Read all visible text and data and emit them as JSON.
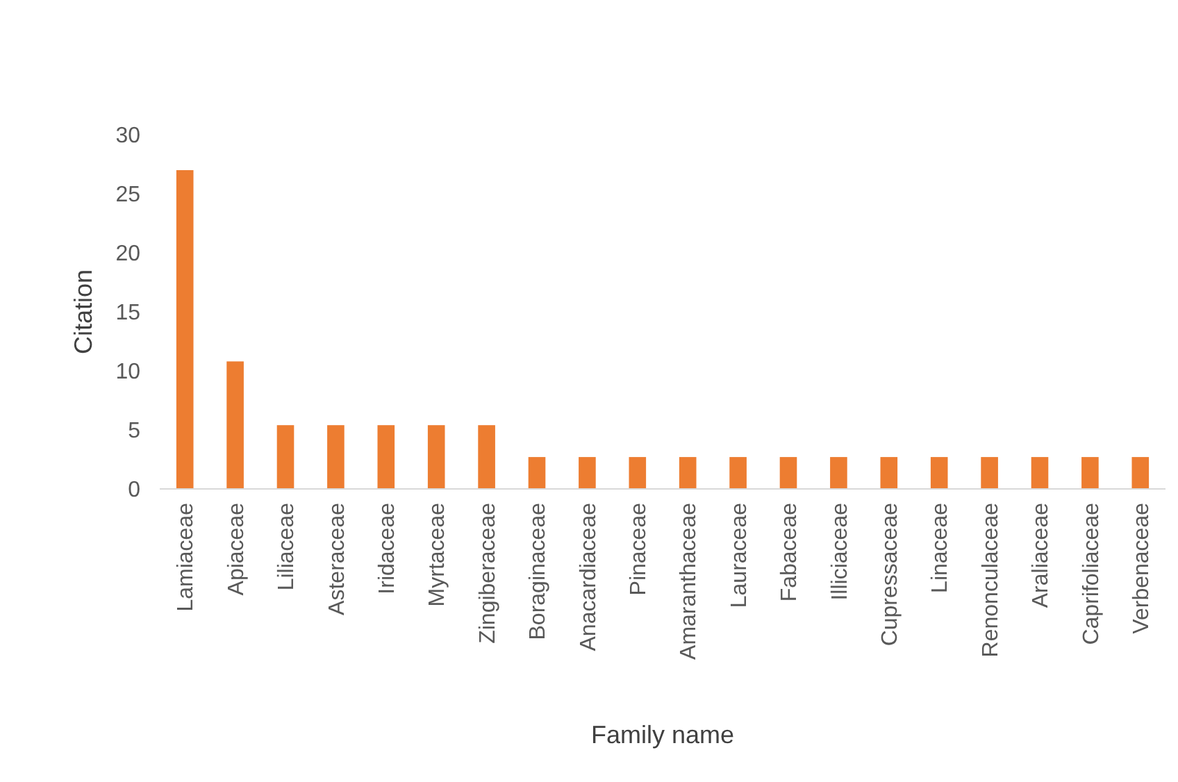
{
  "chart_data": {
    "type": "bar",
    "xlabel": "Family name",
    "ylabel": "Citation",
    "categories": [
      "Lamiaceae",
      "Apiaceae",
      "Liliaceae",
      "Asteraceae",
      "Iridaceae",
      "Myrtaceae",
      "Zingiberaceae",
      "Boraginaceae",
      "Anacardiaceae",
      "Pinaceae",
      "Amaranthaceae",
      "Lauraceae",
      "Fabaceae",
      "Illiciaceae",
      "Cupressaceae",
      "Linaceae",
      "Renonculaceae",
      "Araliaceae",
      "Caprifoliaceae",
      "Verbenaceae"
    ],
    "values": [
      27,
      10.8,
      5.4,
      5.4,
      5.4,
      5.4,
      5.4,
      2.7,
      2.7,
      2.7,
      2.7,
      2.7,
      2.7,
      2.7,
      2.7,
      2.7,
      2.7,
      2.7,
      2.7,
      2.7
    ],
    "color": "#ed7d31",
    "ylim": [
      0,
      30
    ],
    "yticks": [
      0,
      5,
      10,
      15,
      20,
      25,
      30
    ]
  }
}
